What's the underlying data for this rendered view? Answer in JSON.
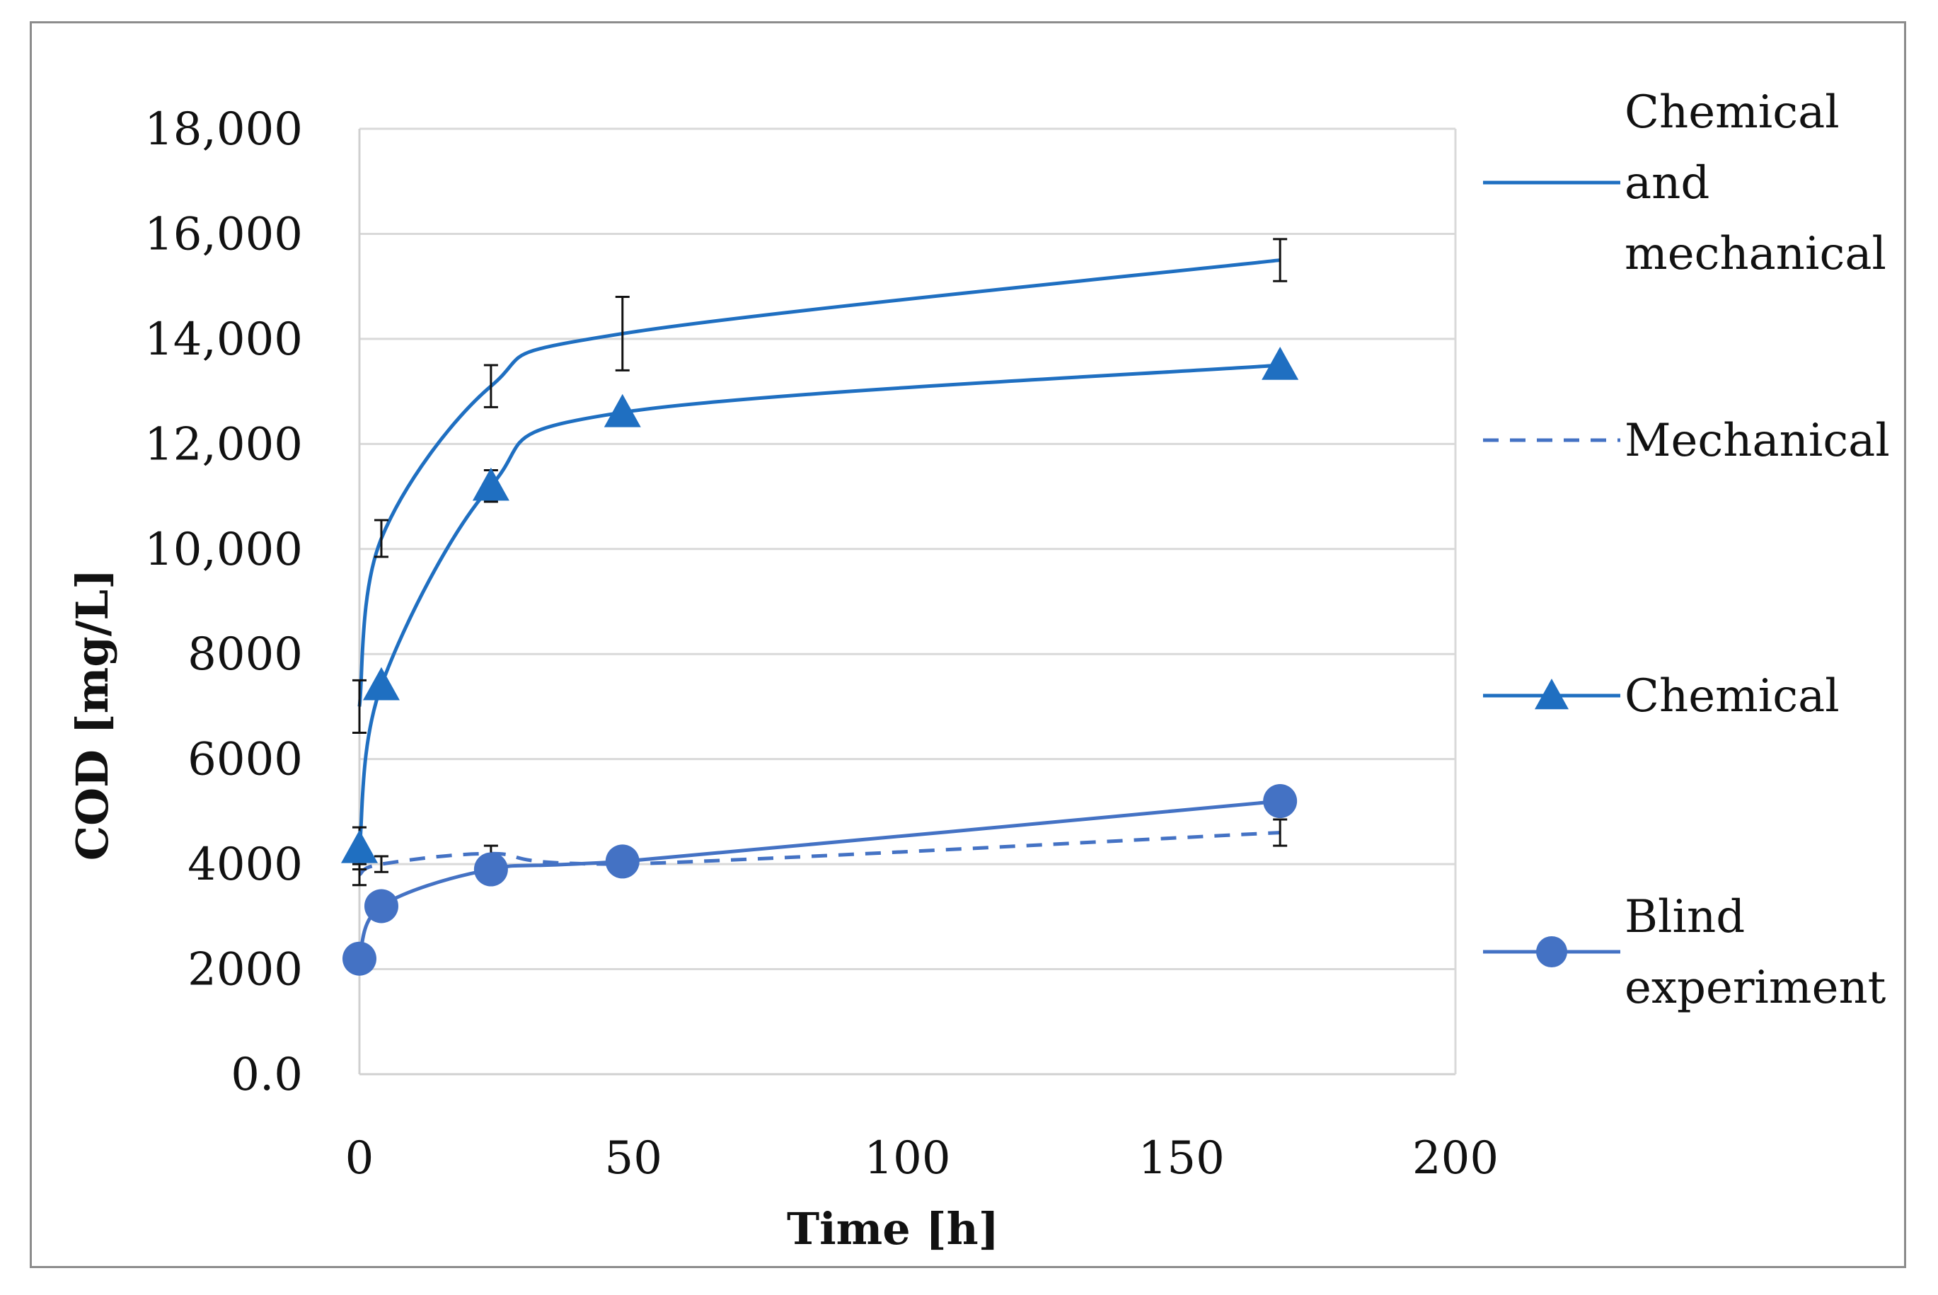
{
  "chart_data": {
    "type": "line",
    "title": "",
    "xlabel": "Time [h]",
    "ylabel": "COD [mg/L]",
    "xlim": [
      0,
      200
    ],
    "ylim": [
      0,
      18000
    ],
    "x_ticks": [
      0,
      50,
      100,
      150,
      200
    ],
    "x_tick_labels": [
      "0",
      "50",
      "100",
      "150",
      "200"
    ],
    "y_ticks": [
      0,
      2000,
      4000,
      6000,
      8000,
      10000,
      12000,
      14000,
      16000,
      18000
    ],
    "y_tick_labels": [
      "0.0",
      "2000",
      "4000",
      "6000",
      "8000",
      "10,000",
      "12,000",
      "14,000",
      "16,000",
      "18,000"
    ],
    "grid": "horizontal",
    "legend_position": "right",
    "series": [
      {
        "name": "Chemical and mechanical",
        "legend_lines": [
          "Chemical",
          "and",
          "mechanical"
        ],
        "style": "solid",
        "marker": "none",
        "color": "#1f6fc1",
        "x": [
          0,
          4,
          24,
          48,
          168
        ],
        "y": [
          7000,
          10200,
          13100,
          14100,
          15500
        ],
        "error": [
          500,
          350,
          400,
          700,
          400
        ]
      },
      {
        "name": "Mechanical",
        "legend_lines": [
          "Mechanical"
        ],
        "style": "dashed",
        "marker": "none",
        "color": "#4472c4",
        "x": [
          0,
          4,
          24,
          48,
          168
        ],
        "y": [
          3800,
          4000,
          4200,
          4000,
          4600
        ],
        "error": [
          200,
          150,
          150,
          100,
          250
        ]
      },
      {
        "name": "Chemical",
        "legend_lines": [
          "Chemical"
        ],
        "style": "solid",
        "marker": "triangle",
        "color": "#1f6fc1",
        "x": [
          0,
          4,
          24,
          48,
          168
        ],
        "y": [
          4300,
          7400,
          11200,
          12600,
          13500
        ],
        "error": [
          400,
          0,
          300,
          0,
          0
        ]
      },
      {
        "name": "Blind experiment",
        "legend_lines": [
          "Blind",
          "experiment"
        ],
        "style": "solid",
        "marker": "circle",
        "color": "#4472c4",
        "x": [
          0,
          4,
          24,
          48,
          168
        ],
        "y": [
          2200,
          3200,
          3900,
          4050,
          5200
        ],
        "error": [
          0,
          0,
          0,
          0,
          0
        ]
      }
    ]
  }
}
